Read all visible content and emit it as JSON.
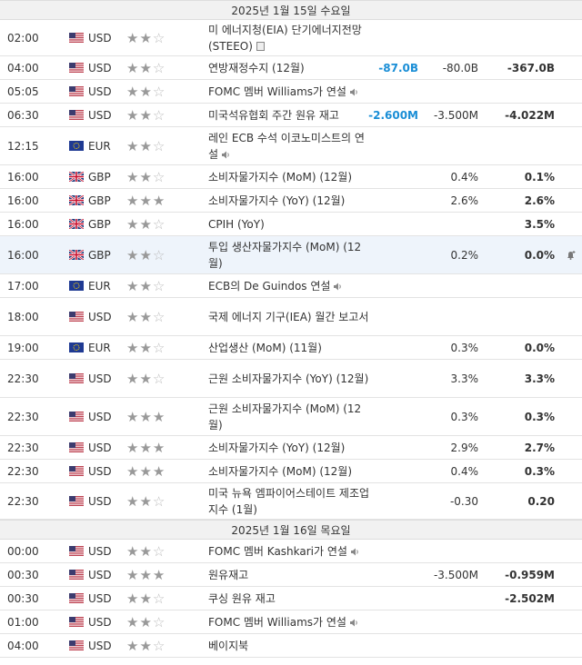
{
  "days": [
    {
      "header": "2025년 1월 15일 수요일",
      "rows": [
        {
          "time": "02:00",
          "flag": "us",
          "currency": "USD",
          "stars": 2,
          "event": "미 에너지청(EIA) 단기에너지전망(STEEO)",
          "icon": "doc",
          "actual": "",
          "forecast": "",
          "previous": "",
          "h": 40
        },
        {
          "time": "04:00",
          "flag": "us",
          "currency": "USD",
          "stars": 2,
          "event": "연방재정수지 (12월)",
          "icon": "",
          "actual": "-87.0B",
          "forecast": "-80.0B",
          "previous": "-367.0B",
          "h": 26
        },
        {
          "time": "05:05",
          "flag": "us",
          "currency": "USD",
          "stars": 2,
          "event": "FOMC 멤버 Williams가 연설",
          "icon": "speaker",
          "actual": "",
          "forecast": "",
          "previous": "",
          "h": 26
        },
        {
          "time": "06:30",
          "flag": "us",
          "currency": "USD",
          "stars": 2,
          "event": "미국석유협회 주간 원유 재고",
          "icon": "",
          "actual": "-2.600M",
          "forecast": "-3.500M",
          "previous": "-4.022M",
          "h": 26
        },
        {
          "time": "12:15",
          "flag": "eu",
          "currency": "EUR",
          "stars": 2,
          "event": "레인 ECB 수석 이코노미스트의 연설",
          "icon": "speaker",
          "actual": "",
          "forecast": "",
          "previous": "",
          "h": 42
        },
        {
          "time": "16:00",
          "flag": "gb",
          "currency": "GBP",
          "stars": 2,
          "event": "소비자물가지수 (MoM) (12월)",
          "icon": "",
          "actual": "",
          "forecast": "0.4%",
          "previous": "0.1%",
          "h": 26
        },
        {
          "time": "16:00",
          "flag": "gb",
          "currency": "GBP",
          "stars": 3,
          "event": "소비자물가지수 (YoY) (12월)",
          "icon": "",
          "actual": "",
          "forecast": "2.6%",
          "previous": "2.6%",
          "h": 26
        },
        {
          "time": "16:00",
          "flag": "gb",
          "currency": "GBP",
          "stars": 2,
          "event": "CPIH (YoY)",
          "icon": "",
          "actual": "",
          "forecast": "",
          "previous": "3.5%",
          "h": 26
        },
        {
          "time": "16:00",
          "flag": "gb",
          "currency": "GBP",
          "stars": 2,
          "event": "투입 생산자물가지수 (MoM) (12월)",
          "icon": "",
          "actual": "",
          "forecast": "0.2%",
          "previous": "0.0%",
          "h": 42,
          "hl": true,
          "bell": true
        },
        {
          "time": "17:00",
          "flag": "eu",
          "currency": "EUR",
          "stars": 2,
          "event": "ECB의 De Guindos 연설",
          "icon": "speaker",
          "actual": "",
          "forecast": "",
          "previous": "",
          "h": 26
        },
        {
          "time": "18:00",
          "flag": "us",
          "currency": "USD",
          "stars": 2,
          "event": "국제 에너지 기구(IEA) 월간 보고서",
          "icon": "",
          "actual": "",
          "forecast": "",
          "previous": "",
          "h": 42
        },
        {
          "time": "19:00",
          "flag": "eu",
          "currency": "EUR",
          "stars": 2,
          "event": "산업생산 (MoM) (11월)",
          "icon": "",
          "actual": "",
          "forecast": "0.3%",
          "previous": "0.0%",
          "h": 26
        },
        {
          "time": "22:30",
          "flag": "us",
          "currency": "USD",
          "stars": 2,
          "event": "근원 소비자물가지수 (YoY) (12월)",
          "icon": "",
          "actual": "",
          "forecast": "3.3%",
          "previous": "3.3%",
          "h": 42
        },
        {
          "time": "22:30",
          "flag": "us",
          "currency": "USD",
          "stars": 3,
          "event": "근원 소비자물가지수 (MoM) (12월)",
          "icon": "",
          "actual": "",
          "forecast": "0.3%",
          "previous": "0.3%",
          "h": 42
        },
        {
          "time": "22:30",
          "flag": "us",
          "currency": "USD",
          "stars": 3,
          "event": "소비자물가지수 (YoY) (12월)",
          "icon": "",
          "actual": "",
          "forecast": "2.9%",
          "previous": "2.7%",
          "h": 26
        },
        {
          "time": "22:30",
          "flag": "us",
          "currency": "USD",
          "stars": 3,
          "event": "소비자물가지수 (MoM) (12월)",
          "icon": "",
          "actual": "",
          "forecast": "0.4%",
          "previous": "0.3%",
          "h": 26
        },
        {
          "time": "22:30",
          "flag": "us",
          "currency": "USD",
          "stars": 2,
          "event": "미국 뉴욕 엠파이어스테이트 제조업지수 (1월)",
          "icon": "",
          "actual": "",
          "forecast": "-0.30",
          "previous": "0.20",
          "h": 40
        }
      ]
    },
    {
      "header": "2025년 1월 16일 목요일",
      "rows": [
        {
          "time": "00:00",
          "flag": "us",
          "currency": "USD",
          "stars": 2,
          "event": "FOMC 멤버 Kashkari가 연설",
          "icon": "speaker",
          "actual": "",
          "forecast": "",
          "previous": "",
          "h": 26
        },
        {
          "time": "00:30",
          "flag": "us",
          "currency": "USD",
          "stars": 3,
          "event": "원유재고",
          "icon": "",
          "actual": "",
          "forecast": "-3.500M",
          "previous": "-0.959M",
          "h": 26
        },
        {
          "time": "00:30",
          "flag": "us",
          "currency": "USD",
          "stars": 2,
          "event": "쿠싱 원유 재고",
          "icon": "",
          "actual": "",
          "forecast": "",
          "previous": "-2.502M",
          "h": 26
        },
        {
          "time": "01:00",
          "flag": "us",
          "currency": "USD",
          "stars": 2,
          "event": "FOMC 멤버 Williams가 연설",
          "icon": "speaker",
          "actual": "",
          "forecast": "",
          "previous": "",
          "h": 26
        },
        {
          "time": "04:00",
          "flag": "us",
          "currency": "USD",
          "stars": 2,
          "event": "베이지북",
          "icon": "",
          "actual": "",
          "forecast": "",
          "previous": "",
          "h": 26
        }
      ]
    }
  ]
}
